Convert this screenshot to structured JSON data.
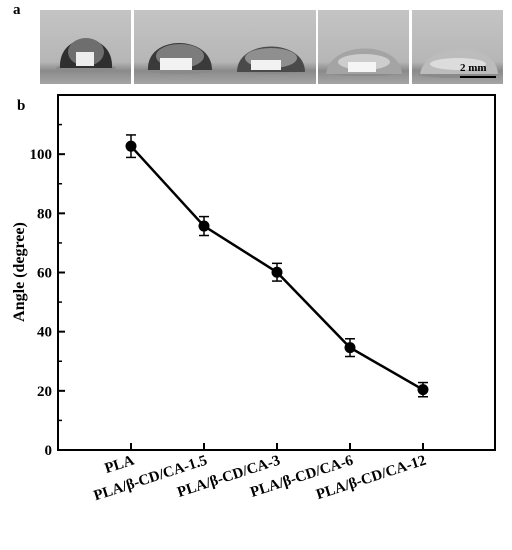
{
  "panels": {
    "a": "a",
    "b": "b"
  },
  "photo_strip": {
    "scale_bar_label": "2 mm"
  },
  "chart_data": {
    "type": "line",
    "categories": [
      "PLA",
      "PLA/β-CD/CA-1.5",
      "PLA/β-CD/CA-3",
      "PLA/β-CD/CA-6",
      "PLA/β-CD/CA-12"
    ],
    "series": [
      {
        "values": [
          102.7,
          75.7,
          60.1,
          34.6,
          20.4
        ],
        "errors": [
          3.8,
          3.2,
          3.0,
          3.0,
          2.4
        ]
      }
    ],
    "xlabel": "",
    "ylabel": "Angle (degree)",
    "ylim": [
      0,
      120
    ],
    "yticks": [
      0,
      20,
      40,
      60,
      80,
      100
    ],
    "grid": false,
    "line_color": "#000000"
  }
}
